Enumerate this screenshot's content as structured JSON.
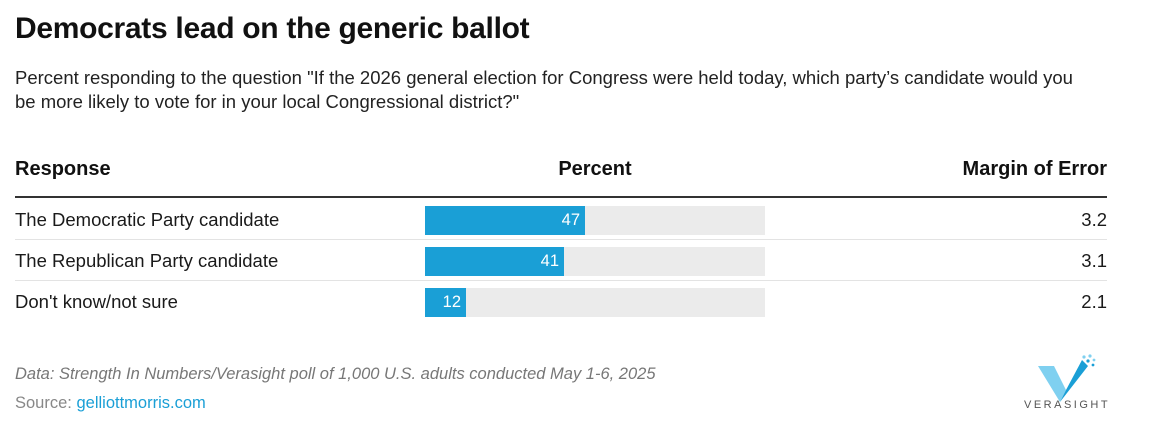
{
  "title": "Democrats lead on the generic ballot",
  "subtitle": "Percent responding to the question \"If the 2026 general election for Congress were held today, which party’s candidate would you be more likely to vote for in your local Congressional district?\"",
  "table": {
    "headers": {
      "response": "Response",
      "percent": "Percent",
      "moe": "Margin of Error"
    }
  },
  "chart_data": {
    "type": "bar",
    "orientation": "horizontal",
    "categories": [
      "The Democratic Party candidate",
      "The Republican Party candidate",
      "Don't know/not sure"
    ],
    "values": [
      47,
      41,
      12
    ],
    "value_labels": [
      "47",
      "41",
      "12"
    ],
    "margin_of_error": [
      "3.2",
      "3.1",
      "2.1"
    ],
    "xlim": [
      0,
      100
    ],
    "bar_color": "#1a9fd6",
    "track_color": "#ebebeb"
  },
  "footer": {
    "note": "Data: Strength In Numbers/Verasight poll of 1,000 U.S. adults conducted May 1-6, 2025",
    "source_prefix": "Source:",
    "source_link": "gelliottmorris.com"
  },
  "logo": {
    "text": "VERASIGHT",
    "icon": "verasight-v-logo-icon",
    "color": "#1a9fd6"
  }
}
